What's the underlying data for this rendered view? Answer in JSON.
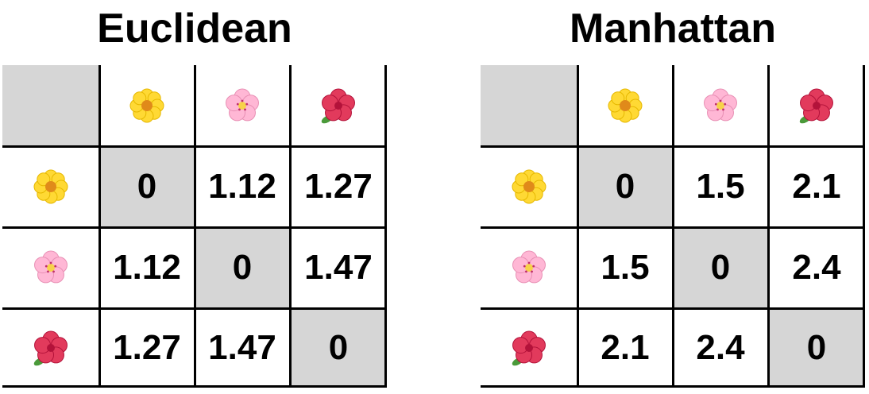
{
  "colors": {
    "shaded_cell": "#d6d6d6",
    "grid_line": "#000000",
    "text": "#000000"
  },
  "flowers": [
    {
      "name": "sunflower",
      "icon": "yellow-flower-icon",
      "petal": "#ffd934",
      "center": "#e08a1a"
    },
    {
      "name": "cherry-blossom",
      "icon": "pink-blossom-icon",
      "petal": "#ffb7d5",
      "center": "#f7d24a"
    },
    {
      "name": "hibiscus",
      "icon": "red-hibiscus-icon",
      "petal": "#e23a5c",
      "center": "#b3123a"
    }
  ],
  "panels": [
    {
      "title": "Euclidean",
      "rows": [
        [
          "0",
          "1.12",
          "1.27"
        ],
        [
          "1.12",
          "0",
          "1.47"
        ],
        [
          "1.27",
          "1.47",
          "0"
        ]
      ]
    },
    {
      "title": "Manhattan",
      "rows": [
        [
          "0",
          "1.5",
          "2.1"
        ],
        [
          "1.5",
          "0",
          "2.4"
        ],
        [
          "2.1",
          "2.4",
          "0"
        ]
      ]
    }
  ]
}
